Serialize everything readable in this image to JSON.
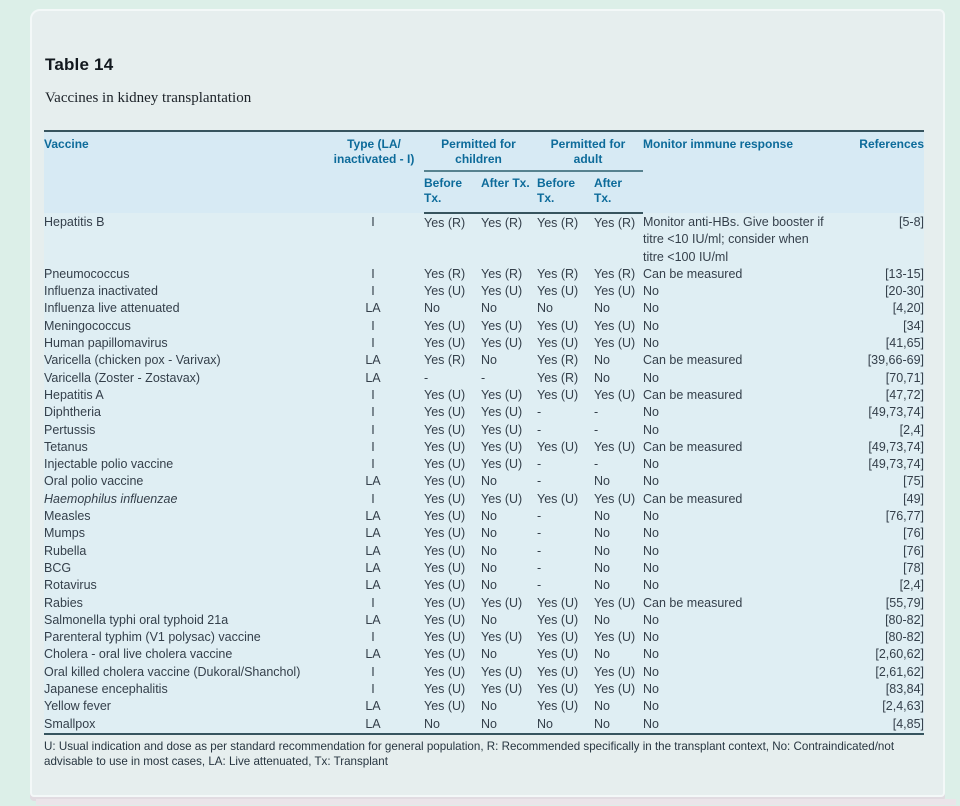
{
  "page": {
    "title": "Table 14",
    "caption": "Vaccines in kidney transplantation"
  },
  "colors": {
    "page_background": "#dcefe8",
    "card_background": "#e6eeee",
    "header_band": "#d7eaf4",
    "body_band": "#dfeef3",
    "header_text": "#0d6b9a",
    "rule": "#37545e",
    "body_text": "#343f4a"
  },
  "table": {
    "headers": {
      "vaccine": "Vaccine",
      "type_line1": "Type (LA/",
      "type_line2": "inactivated - I)",
      "children_group": "Permitted for children",
      "adult_group": "Permitted for adult",
      "before_tx": "Before Tx.",
      "after_tx": "After Tx.",
      "monitor": "Monitor immune response",
      "references": "References"
    },
    "col_keys": [
      "vaccine",
      "type",
      "child_before",
      "child_after",
      "adult_before",
      "adult_after",
      "monitor",
      "refs"
    ],
    "rows": [
      {
        "vaccine": "Hepatitis B",
        "type": "I",
        "child_before": "Yes (R)",
        "child_after": "Yes (R)",
        "adult_before": "Yes (R)",
        "adult_after": "Yes (R)",
        "monitor": "Monitor anti-HBs. Give booster if titre <10 IU/ml; consider when titre <100 IU/ml",
        "refs": "[5-8]"
      },
      {
        "vaccine": "Pneumococcus",
        "type": "I",
        "child_before": "Yes (R)",
        "child_after": "Yes (R)",
        "adult_before": "Yes (R)",
        "adult_after": "Yes (R)",
        "monitor": "Can be measured",
        "refs": "[13-15]"
      },
      {
        "vaccine": "Influenza inactivated",
        "type": "I",
        "child_before": "Yes (U)",
        "child_after": "Yes (U)",
        "adult_before": "Yes (U)",
        "adult_after": "Yes (U)",
        "monitor": "No",
        "refs": "[20-30]"
      },
      {
        "vaccine": "Influenza live attenuated",
        "type": "LA",
        "child_before": "No",
        "child_after": "No",
        "adult_before": "No",
        "adult_after": "No",
        "monitor": "No",
        "refs": "[4,20]"
      },
      {
        "vaccine": "Meningococcus",
        "type": "I",
        "child_before": "Yes (U)",
        "child_after": "Yes (U)",
        "adult_before": "Yes (U)",
        "adult_after": "Yes (U)",
        "monitor": "No",
        "refs": "[34]"
      },
      {
        "vaccine": "Human papillomavirus",
        "type": "I",
        "child_before": "Yes (U)",
        "child_after": "Yes (U)",
        "adult_before": "Yes (U)",
        "adult_after": "Yes (U)",
        "monitor": "No",
        "refs": "[41,65]"
      },
      {
        "vaccine": "Varicella (chicken pox - Varivax)",
        "type": "LA",
        "child_before": "Yes (R)",
        "child_after": "No",
        "adult_before": "Yes (R)",
        "adult_after": "No",
        "monitor": "Can be measured",
        "refs": "[39,66-69]"
      },
      {
        "vaccine": "Varicella (Zoster - Zostavax)",
        "type": "LA",
        "child_before": "-",
        "child_after": "-",
        "adult_before": "Yes (R)",
        "adult_after": "No",
        "monitor": "No",
        "refs": "[70,71]"
      },
      {
        "vaccine": "Hepatitis A",
        "type": "I",
        "child_before": "Yes (U)",
        "child_after": "Yes (U)",
        "adult_before": "Yes (U)",
        "adult_after": "Yes (U)",
        "monitor": "Can be measured",
        "refs": "[47,72]"
      },
      {
        "vaccine": "Diphtheria",
        "type": "I",
        "child_before": "Yes (U)",
        "child_after": "Yes (U)",
        "adult_before": "-",
        "adult_after": "-",
        "monitor": "No",
        "refs": "[49,73,74]"
      },
      {
        "vaccine": "Pertussis",
        "type": "I",
        "child_before": "Yes (U)",
        "child_after": "Yes (U)",
        "adult_before": "-",
        "adult_after": "-",
        "monitor": "No",
        "refs": "[2,4]"
      },
      {
        "vaccine": "Tetanus",
        "type": "I",
        "child_before": "Yes (U)",
        "child_after": "Yes (U)",
        "adult_before": "Yes (U)",
        "adult_after": "Yes (U)",
        "monitor": "Can be measured",
        "refs": "[49,73,74]"
      },
      {
        "vaccine": "Injectable polio vaccine",
        "type": "I",
        "child_before": "Yes (U)",
        "child_after": "Yes (U)",
        "adult_before": "-",
        "adult_after": "-",
        "monitor": "No",
        "refs": "[49,73,74]"
      },
      {
        "vaccine": "Oral polio vaccine",
        "type": "LA",
        "child_before": "Yes (U)",
        "child_after": "No",
        "adult_before": "-",
        "adult_after": "No",
        "monitor": "No",
        "refs": "[75]"
      },
      {
        "vaccine": "Haemophilus influenzae",
        "italic": true,
        "type": "I",
        "child_before": "Yes (U)",
        "child_after": "Yes (U)",
        "adult_before": "Yes (U)",
        "adult_after": "Yes (U)",
        "monitor": "Can be measured",
        "refs": "[49]"
      },
      {
        "vaccine": "Measles",
        "type": "LA",
        "child_before": "Yes (U)",
        "child_after": "No",
        "adult_before": "-",
        "adult_after": "No",
        "monitor": "No",
        "refs": "[76,77]"
      },
      {
        "vaccine": "Mumps",
        "type": "LA",
        "child_before": "Yes (U)",
        "child_after": "No",
        "adult_before": "-",
        "adult_after": "No",
        "monitor": "No",
        "refs": "[76]"
      },
      {
        "vaccine": "Rubella",
        "type": "LA",
        "child_before": "Yes (U)",
        "child_after": "No",
        "adult_before": "-",
        "adult_after": "No",
        "monitor": "No",
        "refs": "[76]"
      },
      {
        "vaccine": "BCG",
        "type": "LA",
        "child_before": "Yes (U)",
        "child_after": "No",
        "adult_before": "-",
        "adult_after": "No",
        "monitor": "No",
        "refs": "[78]"
      },
      {
        "vaccine": "Rotavirus",
        "type": "LA",
        "child_before": "Yes (U)",
        "child_after": "No",
        "adult_before": "-",
        "adult_after": "No",
        "monitor": "No",
        "refs": "[2,4]"
      },
      {
        "vaccine": "Rabies",
        "type": "I",
        "child_before": "Yes (U)",
        "child_after": "Yes (U)",
        "adult_before": "Yes (U)",
        "adult_after": "Yes (U)",
        "monitor": "Can be measured",
        "refs": "[55,79]"
      },
      {
        "vaccine": "Salmonella typhi oral typhoid 21a",
        "type": "LA",
        "child_before": "Yes (U)",
        "child_after": "No",
        "adult_before": "Yes (U)",
        "adult_after": "No",
        "monitor": "No",
        "refs": "[80-82]"
      },
      {
        "vaccine": "Parenteral typhim (V1 polysac) vaccine",
        "type": "I",
        "child_before": "Yes (U)",
        "child_after": "Yes (U)",
        "adult_before": "Yes (U)",
        "adult_after": "Yes (U)",
        "monitor": "No",
        "refs": "[80-82]"
      },
      {
        "vaccine": "Cholera - oral live cholera vaccine",
        "type": "LA",
        "child_before": "Yes (U)",
        "child_after": "No",
        "adult_before": "Yes (U)",
        "adult_after": "No",
        "monitor": "No",
        "refs": "[2,60,62]"
      },
      {
        "vaccine": "Oral killed cholera vaccine (Dukoral/Shanchol)",
        "type": "I",
        "child_before": "Yes (U)",
        "child_after": "Yes (U)",
        "adult_before": "Yes (U)",
        "adult_after": "Yes (U)",
        "monitor": "No",
        "refs": "[2,61,62]"
      },
      {
        "vaccine": "Japanese encephalitis",
        "type": "I",
        "child_before": "Yes (U)",
        "child_after": "Yes (U)",
        "adult_before": "Yes (U)",
        "adult_after": "Yes (U)",
        "monitor": "No",
        "refs": "[83,84]"
      },
      {
        "vaccine": "Yellow fever",
        "type": "LA",
        "child_before": "Yes (U)",
        "child_after": "No",
        "adult_before": "Yes (U)",
        "adult_after": "No",
        "monitor": "No",
        "refs": "[2,4,63]"
      },
      {
        "vaccine": "Smallpox",
        "type": "LA",
        "child_before": "No",
        "child_after": "No",
        "adult_before": "No",
        "adult_after": "No",
        "monitor": "No",
        "refs": "[4,85]"
      }
    ],
    "footnote": "U: Usual indication and dose as per standard recommendation for general population, R: Recommended specifically in the transplant context, No: Contraindicated/not advisable to use in most cases, LA: Live attenuated, Tx: Transplant"
  }
}
